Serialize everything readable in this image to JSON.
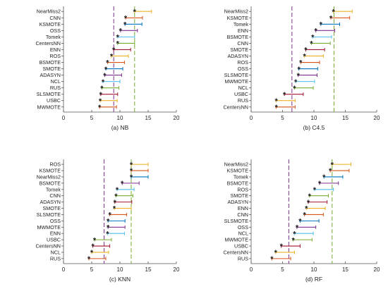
{
  "chart_data": [
    {
      "type": "scatter",
      "subplot": "(a) NB",
      "caption": "(a) NB",
      "xlim": [
        0,
        20
      ],
      "xticks": [
        0,
        5,
        10,
        15,
        20
      ],
      "grid": false,
      "categories": [
        "NearMiss2",
        "CNN",
        "KSMOTE",
        "OSS",
        "Tomek",
        "CentersNN",
        "ENN",
        "ROS",
        "BSMOTE",
        "SMOTE",
        "ADASYN",
        "NCL",
        "RUS",
        "SLSMOTE",
        "USBC",
        "MWMOTE"
      ],
      "values": [
        12.6,
        11.0,
        10.9,
        10.1,
        9.6,
        9.6,
        8.9,
        8.5,
        7.8,
        7.5,
        7.3,
        7.0,
        6.8,
        6.6,
        6.5,
        6.4
      ],
      "interval_high": [
        15.6,
        14.0,
        13.9,
        13.1,
        12.6,
        12.6,
        11.9,
        11.5,
        10.8,
        10.5,
        10.3,
        10.0,
        9.8,
        9.6,
        9.5,
        9.4
      ],
      "reference_lines": [
        8.9,
        12.6
      ]
    },
    {
      "type": "scatter",
      "subplot": "(b) C4.5",
      "caption": "(b) C4.5",
      "xlim": [
        0,
        20
      ],
      "xticks": [
        0,
        5,
        10,
        15,
        20
      ],
      "grid": false,
      "categories": [
        "NearMiss2",
        "KSMOTE",
        "Tomek",
        "ENN",
        "BSMOTE",
        "CNN",
        "SMOTE",
        "ADASYN",
        "ROS",
        "OSS",
        "SLSMOTE",
        "MWMOTE",
        "NCL",
        "USBC",
        "RUS",
        "CentersNN"
      ],
      "values": [
        13.1,
        12.7,
        11.1,
        10.3,
        9.8,
        9.6,
        8.7,
        8.5,
        7.9,
        7.6,
        7.5,
        7.1,
        6.9,
        5.3,
        4.0,
        4.0
      ],
      "interval_high": [
        16.1,
        15.7,
        14.1,
        13.3,
        12.8,
        12.6,
        11.7,
        11.5,
        10.9,
        10.6,
        10.5,
        10.1,
        9.9,
        8.3,
        7.0,
        7.0
      ],
      "reference_lines": [
        6.5,
        13.2
      ]
    },
    {
      "type": "scatter",
      "subplot": "(c) KNN",
      "caption": "(c) KNN",
      "xlim": [
        0,
        20
      ],
      "xticks": [
        0,
        5,
        10,
        15,
        20
      ],
      "grid": false,
      "categories": [
        "ROS",
        "KSMOTE",
        "NearMiss2",
        "BSMOTE",
        "Tomek",
        "CNN",
        "ADASYN",
        "SMOTE",
        "SLSMOTE",
        "OSS",
        "MWMOTE",
        "ENN",
        "USBC",
        "CentersNN",
        "NCL",
        "RUS"
      ],
      "values": [
        12.0,
        12.0,
        12.0,
        10.4,
        9.5,
        9.3,
        9.1,
        9.0,
        8.2,
        7.9,
        7.9,
        7.8,
        5.5,
        5.2,
        5.0,
        4.5
      ],
      "interval_high": [
        15.0,
        15.0,
        15.0,
        13.4,
        12.5,
        12.3,
        12.1,
        12.0,
        11.2,
        10.9,
        10.9,
        10.8,
        8.5,
        8.2,
        8.0,
        7.5
      ],
      "reference_lines": [
        7.2,
        12.0
      ]
    },
    {
      "type": "scatter",
      "subplot": "(d) RF",
      "caption": "(d) RF",
      "xlim": [
        0,
        20
      ],
      "xticks": [
        0,
        5,
        10,
        15,
        20
      ],
      "grid": false,
      "categories": [
        "NearMiss2",
        "KSMOTE",
        "Tomek",
        "BSMOTE",
        "ROS",
        "SMOTE",
        "ADASYN",
        "ENN",
        "CNN",
        "SLSMOTE",
        "OSS",
        "NCL",
        "MWMOTE",
        "USBC",
        "CentersNN",
        "RUS"
      ],
      "values": [
        12.9,
        12.6,
        11.6,
        10.9,
        10.1,
        9.3,
        9.1,
        8.8,
        8.5,
        7.8,
        7.3,
        6.9,
        6.7,
        4.8,
        3.9,
        3.3
      ],
      "interval_high": [
        15.9,
        15.6,
        14.6,
        13.9,
        13.1,
        12.3,
        12.1,
        11.8,
        11.5,
        10.8,
        10.3,
        9.9,
        9.7,
        7.8,
        6.9,
        6.3
      ],
      "reference_lines": [
        6.0,
        12.9
      ]
    }
  ],
  "colors": {
    "palette": [
      "#EDB120",
      "#D95319",
      "#0072BD",
      "#7E2F8E",
      "#4DBEEE",
      "#77AC30",
      "#A2142F"
    ],
    "marker": "#0072BD",
    "ref_left": "#7E2F8E",
    "ref_right": "#77AC30",
    "axis": "#555555"
  }
}
